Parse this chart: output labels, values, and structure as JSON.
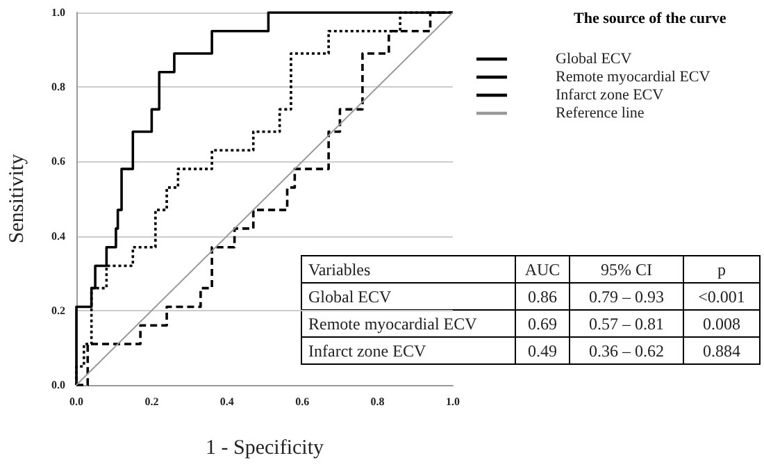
{
  "chart_data": {
    "type": "line",
    "xlabel": "1 - Specificity",
    "ylabel": "Sensitivity",
    "legend_title": "The source of the curve",
    "legend": "right",
    "grid": "y",
    "marker": "none",
    "xlim": [
      0,
      1
    ],
    "ylim": [
      0,
      1
    ],
    "xticks": [
      {
        "value": 0,
        "label": "0.0"
      },
      {
        "value": 0.2,
        "label": "0.2"
      },
      {
        "value": 0.4,
        "label": "0.4"
      },
      {
        "value": 0.6,
        "label": "0.6"
      },
      {
        "value": 0.8,
        "label": "0.8"
      },
      {
        "value": 1,
        "label": "1.0"
      }
    ],
    "yticks": [
      {
        "value": 0,
        "label": "0.0"
      },
      {
        "value": 0.2,
        "label": "0.2"
      },
      {
        "value": 0.4,
        "label": "0.4"
      },
      {
        "value": 0.6,
        "label": "0.6"
      },
      {
        "value": 0.8,
        "label": "0.8"
      },
      {
        "value": 1,
        "label": "1.0"
      }
    ],
    "series": [
      {
        "name": "Global ECV",
        "color": "#000000",
        "line_style": "solid",
        "x": [
          0,
          0,
          0.04,
          0.04,
          0.05,
          0.05,
          0.08,
          0.08,
          0.105,
          0.105,
          0.11,
          0.11,
          0.12,
          0.12,
          0.15,
          0.15,
          0.2,
          0.2,
          0.22,
          0.22,
          0.26,
          0.26,
          0.36,
          0.36,
          0.51,
          0.51,
          1
        ],
        "values": [
          0,
          0.21,
          0.21,
          0.26,
          0.26,
          0.32,
          0.32,
          0.37,
          0.37,
          0.42,
          0.42,
          0.47,
          0.47,
          0.58,
          0.58,
          0.68,
          0.68,
          0.74,
          0.74,
          0.84,
          0.84,
          0.89,
          0.89,
          0.95,
          0.95,
          1,
          1
        ]
      },
      {
        "name": "Remote myocardial ECV",
        "color": "#000000",
        "line_style": "dotted",
        "x": [
          0,
          0,
          0.02,
          0.02,
          0.04,
          0.04,
          0.08,
          0.08,
          0.15,
          0.15,
          0.21,
          0.21,
          0.24,
          0.24,
          0.27,
          0.27,
          0.36,
          0.36,
          0.47,
          0.47,
          0.54,
          0.54,
          0.57,
          0.57,
          0.67,
          0.67,
          0.86,
          0.86,
          1
        ],
        "values": [
          0,
          0.05,
          0.05,
          0.11,
          0.11,
          0.26,
          0.26,
          0.32,
          0.32,
          0.37,
          0.37,
          0.47,
          0.47,
          0.53,
          0.53,
          0.58,
          0.58,
          0.63,
          0.63,
          0.68,
          0.68,
          0.74,
          0.74,
          0.89,
          0.89,
          0.95,
          0.95,
          1,
          1
        ]
      },
      {
        "name": "Infarct zone ECV",
        "color": "#000000",
        "line_style": "dashed",
        "x": [
          0,
          0.03,
          0.03,
          0.17,
          0.17,
          0.24,
          0.24,
          0.33,
          0.33,
          0.36,
          0.36,
          0.42,
          0.42,
          0.47,
          0.47,
          0.56,
          0.56,
          0.58,
          0.58,
          0.67,
          0.67,
          0.7,
          0.7,
          0.76,
          0.76,
          0.83,
          0.83,
          0.94,
          0.94,
          1
        ],
        "values": [
          0,
          0,
          0.11,
          0.11,
          0.16,
          0.16,
          0.21,
          0.21,
          0.26,
          0.26,
          0.37,
          0.37,
          0.42,
          0.42,
          0.47,
          0.47,
          0.53,
          0.53,
          0.58,
          0.58,
          0.68,
          0.68,
          0.74,
          0.74,
          0.89,
          0.89,
          0.95,
          0.95,
          1,
          1
        ]
      },
      {
        "name": "Reference line",
        "color": "#999999",
        "line_style": "solid",
        "x": [
          0,
          1
        ],
        "values": [
          0,
          1
        ]
      }
    ],
    "annotations": [
      "Variables",
      "AUC",
      "95% CI",
      "p",
      "Global ECV",
      "0.86",
      "0.79 – 0.93",
      "<0.001",
      "Remote myocardial ECV",
      "0.69",
      "0.57 – 0.81",
      "0.008",
      "Infarct zone ECV",
      "0.49",
      "0.36 – 0.62",
      "0.884"
    ]
  }
}
